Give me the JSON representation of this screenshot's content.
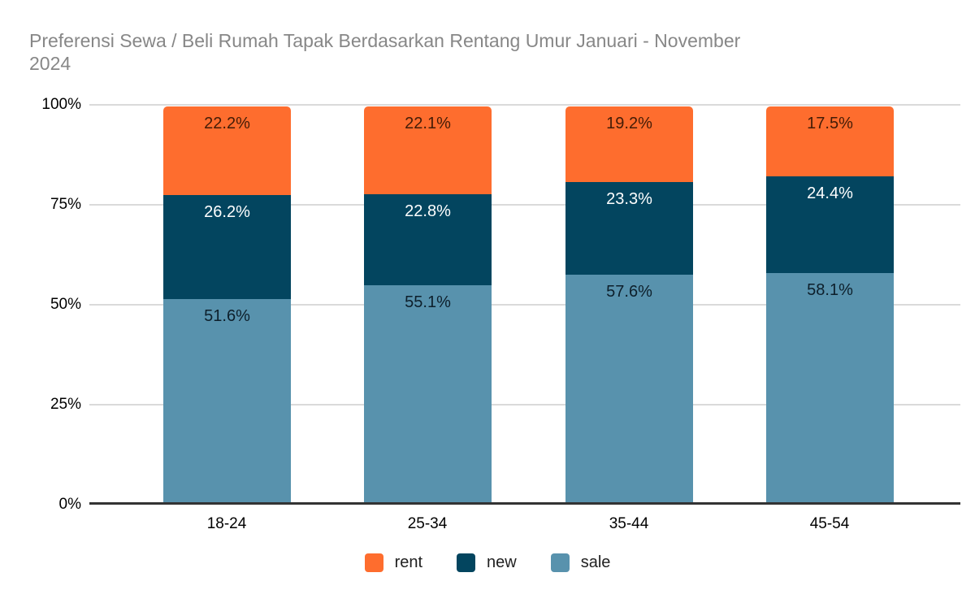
{
  "title": {
    "line1": "Preferensi Sewa / Beli Rumah Tapak Berdasarkan Rentang Umur Januari - November",
    "line2": "2024"
  },
  "chart_data": {
    "type": "bar",
    "subtype": "stacked-100-percent",
    "title": "Preferensi Sewa / Beli Rumah Tapak Berdasarkan Rentang Umur Januari - November 2024",
    "categories": [
      "18-24",
      "25-34",
      "35-44",
      "45-54"
    ],
    "series": [
      {
        "name": "rent",
        "color": "#FE6D2E",
        "label_color": "#431C07",
        "values": [
          22.2,
          22.1,
          19.2,
          17.5
        ],
        "labels": [
          "22.2%",
          "22.1%",
          "19.2%",
          "17.5%"
        ]
      },
      {
        "name": "new",
        "color": "#03455F",
        "label_color": "#FFFFFF",
        "values": [
          26.2,
          22.8,
          23.3,
          24.4
        ],
        "labels": [
          "26.2%",
          "22.8%",
          "23.3%",
          "24.4%"
        ]
      },
      {
        "name": "sale",
        "color": "#5892AD",
        "label_color": "#0D1F2B",
        "values": [
          51.6,
          55.1,
          57.6,
          58.1
        ],
        "labels": [
          "51.6%",
          "55.1%",
          "57.6%",
          "58.1%"
        ]
      }
    ],
    "y_ticks": [
      "0%",
      "25%",
      "50%",
      "75%",
      "100%"
    ],
    "ylim": [
      0,
      100
    ],
    "grid": true,
    "legend_position": "bottom",
    "axis_text_color": "#000000",
    "gridline_color": "#DADADA",
    "baseline_color": "#333333",
    "title_color": "#878787"
  }
}
